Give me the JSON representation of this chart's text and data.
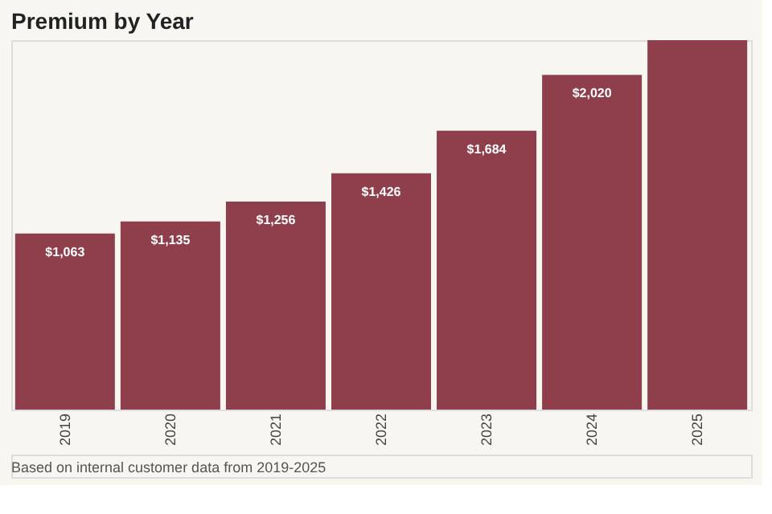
{
  "chart_data": {
    "type": "bar",
    "title": "Premium by Year",
    "categories": [
      "2019",
      "2020",
      "2021",
      "2022",
      "2023",
      "2024",
      "2025"
    ],
    "values": [
      1063,
      1135,
      1256,
      1426,
      1684,
      2020,
      2230
    ],
    "value_labels": [
      "$1,063",
      "$1,135",
      "$1,256",
      "$1,426",
      "$1,684",
      "$2,020",
      null
    ],
    "color": "#8f3f4b",
    "grid": false,
    "annotations": [
      "Based on internal customer data from 2019-2025"
    ]
  }
}
